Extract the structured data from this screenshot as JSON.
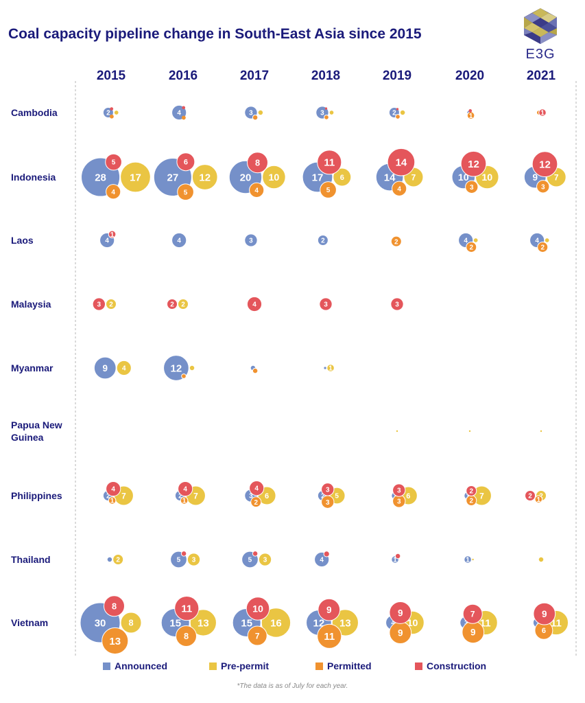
{
  "colors": {
    "announced": "#7590c9",
    "prepermit": "#eac543",
    "permitted": "#f0922f",
    "construction": "#e4565b",
    "text": "#1a1a7a"
  },
  "logo": {
    "text": "E3G"
  },
  "footnote": "*The data is as of July for each year.",
  "legend": [
    {
      "key": "announced",
      "label": "Announced"
    },
    {
      "key": "prepermit",
      "label": "Pre-permit"
    },
    {
      "key": "permitted",
      "label": "Permitted"
    },
    {
      "key": "construction",
      "label": "Construction"
    }
  ],
  "chart_data": {
    "type": "bubble-grid",
    "title": "Coal capacity pipeline change in South-East Asia since 2015",
    "years": [
      "2015",
      "2016",
      "2017",
      "2018",
      "2019",
      "2020",
      "2021"
    ],
    "countries": [
      "Cambodia",
      "Indonesia",
      "Laos",
      "Malaysia",
      "Myanmar",
      "Papua New Guinea",
      "Philippines",
      "Thailand",
      "Vietnam"
    ],
    "stages": [
      "announced",
      "prepermit",
      "permitted",
      "construction"
    ],
    "grid": false,
    "legend_position": "bottom",
    "values": {
      "Cambodia": [
        {
          "announced": 2,
          "prepermit": 0.4,
          "permitted": 0.3,
          "construction": 0.2
        },
        {
          "announced": 4,
          "prepermit": 0,
          "permitted": 0.3,
          "construction": 0.2
        },
        {
          "announced": 3,
          "prepermit": 0.5,
          "permitted": 0.5,
          "construction": 0
        },
        {
          "announced": 3,
          "prepermit": 0.4,
          "permitted": 0.4,
          "construction": 0.1
        },
        {
          "announced": 2,
          "prepermit": 0.5,
          "permitted": 0.4,
          "construction": 0.1
        },
        {
          "announced": 0.2,
          "prepermit": 0,
          "permitted": 1,
          "construction": 0.2
        },
        {
          "announced": 0,
          "prepermit": 0,
          "permitted": 0.4,
          "construction": 1
        }
      ],
      "Indonesia": [
        {
          "announced": 28,
          "prepermit": 17,
          "permitted": 4,
          "construction": 5
        },
        {
          "announced": 27,
          "prepermit": 12,
          "permitted": 5,
          "construction": 6
        },
        {
          "announced": 20,
          "prepermit": 10,
          "permitted": 4,
          "construction": 8
        },
        {
          "announced": 17,
          "prepermit": 6,
          "permitted": 5,
          "construction": 11
        },
        {
          "announced": 14,
          "prepermit": 7,
          "permitted": 4,
          "construction": 14
        },
        {
          "announced": 10,
          "prepermit": 10,
          "permitted": 3,
          "construction": 12
        },
        {
          "announced": 9,
          "prepermit": 7,
          "permitted": 3,
          "construction": 12
        }
      ],
      "Laos": [
        {
          "announced": 4,
          "prepermit": 0,
          "permitted": 0,
          "construction": 1
        },
        {
          "announced": 4,
          "prepermit": 0,
          "permitted": 0,
          "construction": 0
        },
        {
          "announced": 3,
          "prepermit": 0,
          "permitted": 0,
          "construction": 0
        },
        {
          "announced": 2,
          "prepermit": 0,
          "permitted": 0,
          "construction": 0
        },
        {
          "announced": 0,
          "prepermit": 0.2,
          "permitted": 2,
          "construction": 0
        },
        {
          "announced": 4,
          "prepermit": 0.3,
          "permitted": 2,
          "construction": 0
        },
        {
          "announced": 4,
          "prepermit": 0.3,
          "permitted": 2,
          "construction": 0
        }
      ],
      "Malaysia": [
        {
          "announced": 0,
          "prepermit": 2,
          "permitted": 0,
          "construction": 3
        },
        {
          "announced": 0,
          "prepermit": 2,
          "permitted": 0,
          "construction": 2
        },
        {
          "announced": 0,
          "prepermit": 0,
          "permitted": 0,
          "construction": 4
        },
        {
          "announced": 0,
          "prepermit": 0,
          "permitted": 0,
          "construction": 3
        },
        {
          "announced": 0,
          "prepermit": 0,
          "permitted": 0,
          "construction": 3
        },
        {
          "announced": 0,
          "prepermit": 0,
          "permitted": 0,
          "construction": 0
        },
        {
          "announced": 0,
          "prepermit": 0,
          "permitted": 0,
          "construction": 0
        }
      ],
      "Myanmar": [
        {
          "announced": 9,
          "prepermit": 4,
          "permitted": 0,
          "construction": 0
        },
        {
          "announced": 12,
          "prepermit": 0.5,
          "permitted": 0.4,
          "construction": 0
        },
        {
          "announced": 0.5,
          "prepermit": 0,
          "permitted": 0.5,
          "construction": 0
        },
        {
          "announced": 0.1,
          "prepermit": 1,
          "permitted": 0,
          "construction": 0
        },
        {
          "announced": 0,
          "prepermit": 0,
          "permitted": 0,
          "construction": 0
        },
        {
          "announced": 0,
          "prepermit": 0,
          "permitted": 0,
          "construction": 0
        },
        {
          "announced": 0,
          "prepermit": 0,
          "permitted": 0,
          "construction": 0
        }
      ],
      "Papua New Guinea": [
        {
          "announced": 0,
          "prepermit": 0,
          "permitted": 0,
          "construction": 0
        },
        {
          "announced": 0,
          "prepermit": 0,
          "permitted": 0,
          "construction": 0
        },
        {
          "announced": 0,
          "prepermit": 0,
          "permitted": 0,
          "construction": 0
        },
        {
          "announced": 0,
          "prepermit": 0,
          "permitted": 0,
          "construction": 0
        },
        {
          "announced": 0,
          "prepermit": 0.02,
          "permitted": 0,
          "construction": 0
        },
        {
          "announced": 0,
          "prepermit": 0.02,
          "permitted": 0,
          "construction": 0
        },
        {
          "announced": 0,
          "prepermit": 0.02,
          "permitted": 0,
          "construction": 0
        }
      ],
      "Philippines": [
        {
          "announced": 2,
          "prepermit": 7,
          "permitted": 1,
          "construction": 4
        },
        {
          "announced": 2,
          "prepermit": 7,
          "permitted": 1,
          "construction": 4
        },
        {
          "announced": 3,
          "prepermit": 6,
          "permitted": 2,
          "construction": 4
        },
        {
          "announced": 2,
          "prepermit": 5,
          "permitted": 3,
          "construction": 3
        },
        {
          "announced": 1,
          "prepermit": 6,
          "permitted": 3,
          "construction": 3
        },
        {
          "announced": 1,
          "prepermit": 7,
          "permitted": 2,
          "construction": 2
        },
        {
          "announced": 0,
          "prepermit": 2,
          "permitted": 1,
          "construction": 2
        }
      ],
      "Thailand": [
        {
          "announced": 0.5,
          "prepermit": 2,
          "permitted": 0,
          "construction": 0
        },
        {
          "announced": 5,
          "prepermit": 3,
          "permitted": 0,
          "construction": 0.5
        },
        {
          "announced": 5,
          "prepermit": 3,
          "permitted": 0,
          "construction": 0.5
        },
        {
          "announced": 4,
          "prepermit": 0,
          "permitted": 0,
          "construction": 0.6
        },
        {
          "announced": 1,
          "prepermit": 0,
          "permitted": 0,
          "construction": 0.5
        },
        {
          "announced": 1,
          "prepermit": 0.02,
          "permitted": 0,
          "construction": 0
        },
        {
          "announced": 0,
          "prepermit": 0.5,
          "permitted": 0,
          "construction": 0
        }
      ],
      "Vietnam": [
        {
          "announced": 30,
          "prepermit": 8,
          "permitted": 13,
          "construction": 8
        },
        {
          "announced": 15,
          "prepermit": 13,
          "permitted": 8,
          "construction": 11
        },
        {
          "announced": 15,
          "prepermit": 16,
          "permitted": 7,
          "construction": 10
        },
        {
          "announced": 12,
          "prepermit": 13,
          "permitted": 11,
          "construction": 9
        },
        {
          "announced": 4,
          "prepermit": 10,
          "permitted": 9,
          "construction": 9
        },
        {
          "announced": 3,
          "prepermit": 11,
          "permitted": 9,
          "construction": 7
        },
        {
          "announced": 2,
          "prepermit": 11,
          "permitted": 6,
          "construction": 9
        }
      ]
    }
  }
}
